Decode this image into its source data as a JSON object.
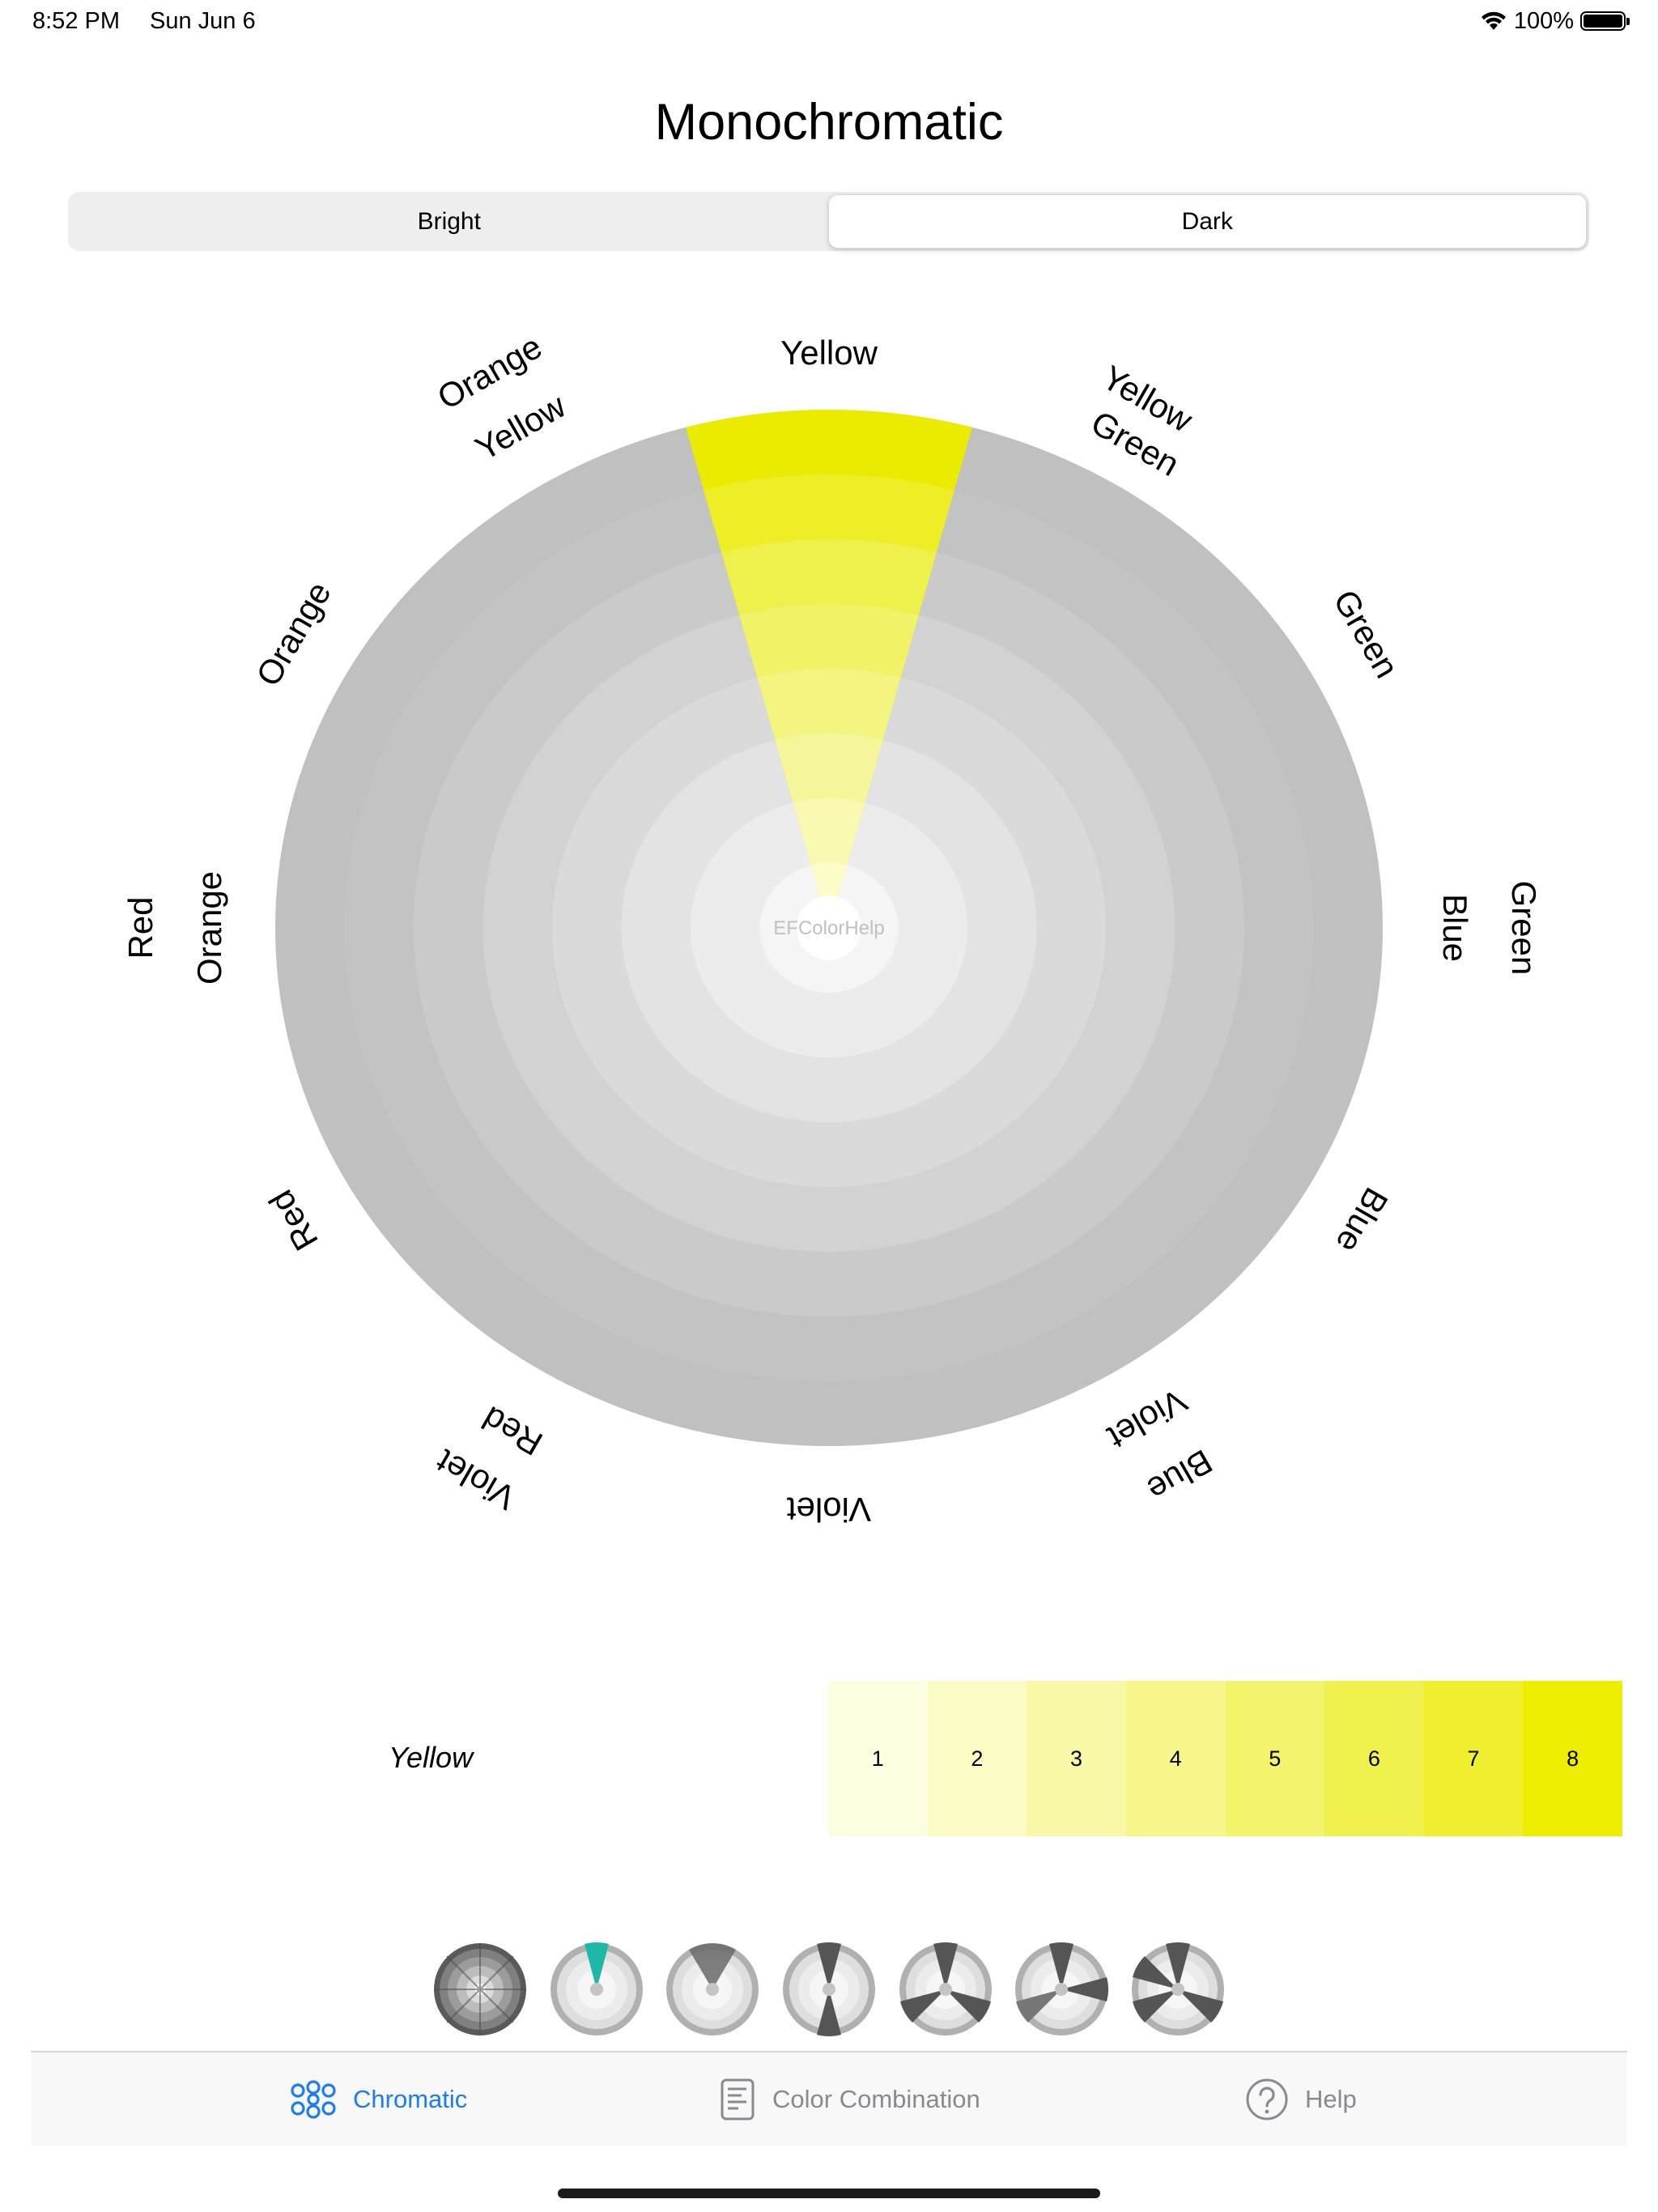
{
  "status_bar": {
    "time": "8:52 PM",
    "date": "Sun Jun 6",
    "battery": "100%"
  },
  "title": "Monochromatic",
  "segment": {
    "options": [
      "Bright",
      "Dark"
    ],
    "selected": "Dark"
  },
  "wheel": {
    "center_label": "EFColorHelp",
    "highlighted_hue": "Yellow",
    "hue_labels": [
      "Yellow",
      "Yellow Green",
      "Green",
      "Blue Green",
      "Blue",
      "Blue Violet",
      "Violet",
      "Red Violet",
      "Red",
      "Red Orange",
      "Orange",
      "Orange Yellow"
    ],
    "ring_colors": [
      "#f5f5f5",
      "#ececec",
      "#e3e3e3",
      "#dadada",
      "#d2d2d2",
      "#cacaca",
      "#c3c3c3",
      "#c0c0c0"
    ],
    "shade_colors": [
      "#fcfcc8",
      "#f9f9b2",
      "#f6f69a",
      "#f4f480",
      "#f2f266",
      "#f0f04a",
      "#eeee26",
      "#ebeb00"
    ]
  },
  "selected_color": {
    "name": "Yellow",
    "swatches": [
      {
        "label": "1",
        "color": "#fdfde0"
      },
      {
        "label": "2",
        "color": "#fbfbc4"
      },
      {
        "label": "3",
        "color": "#f8f8a6"
      },
      {
        "label": "4",
        "color": "#f6f68a"
      },
      {
        "label": "5",
        "color": "#f3f36c"
      },
      {
        "label": "6",
        "color": "#f1f14e"
      },
      {
        "label": "7",
        "color": "#efef30"
      },
      {
        "label": "8",
        "color": "#eded00"
      }
    ]
  },
  "modes": {
    "accent_color": "#1fb8a8",
    "items": [
      "mode-full-wheel",
      "mode-single-hue",
      "mode-analogous",
      "mode-complementary",
      "mode-triad",
      "mode-split",
      "mode-tetrad"
    ]
  },
  "tabs": [
    {
      "label": "Chromatic",
      "icon": "flower-icon",
      "active": true
    },
    {
      "label": "Color Combination",
      "icon": "document-icon",
      "active": false
    },
    {
      "label": "Help",
      "icon": "question-circle-icon",
      "active": false
    }
  ],
  "colors": {
    "accent": "#1b7cf5",
    "inactive": "#8a8a8e"
  }
}
